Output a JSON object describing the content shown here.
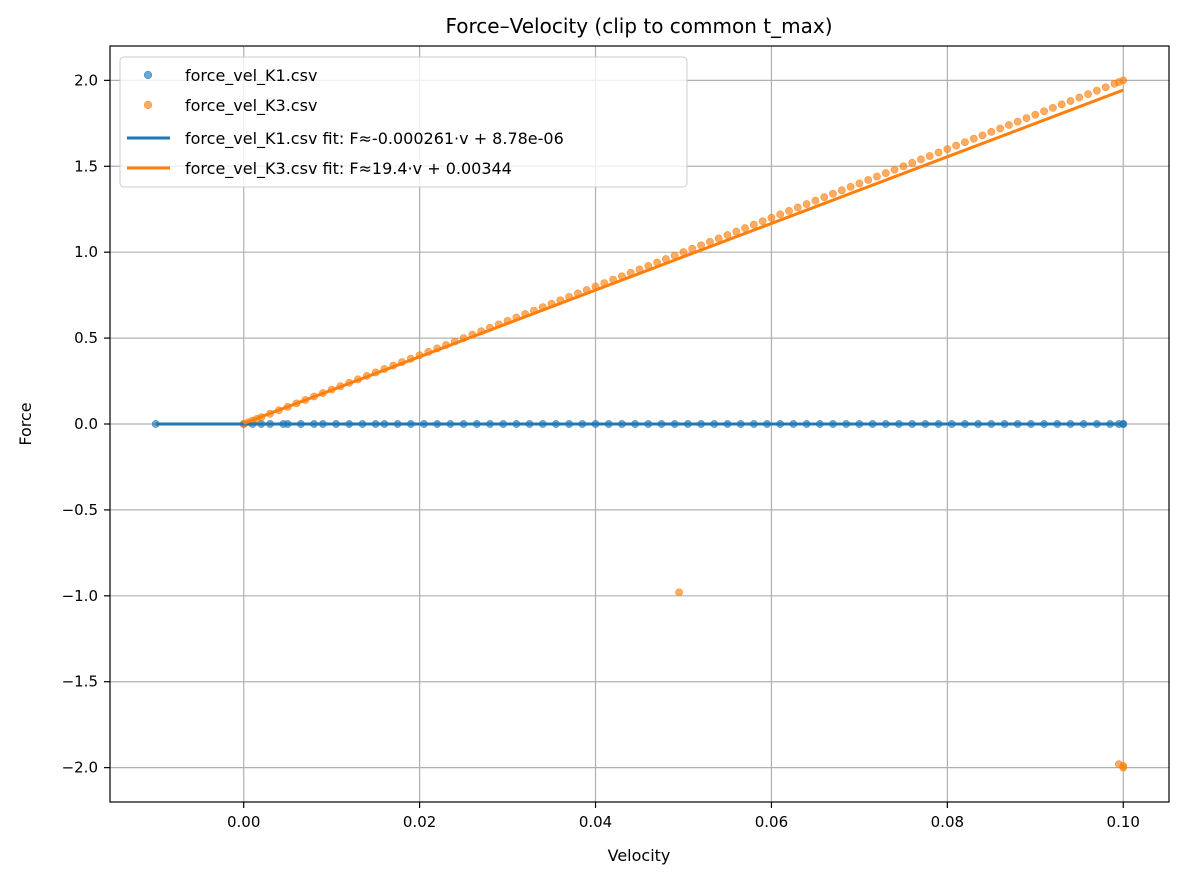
{
  "chart_data": {
    "type": "scatter",
    "title": "Force–Velocity (clip to common t_max)",
    "xlabel": "Velocity",
    "ylabel": "Force",
    "xlim": [
      -0.0152,
      0.1052
    ],
    "ylim": [
      -2.2,
      2.2
    ],
    "xticks": [
      0.0,
      0.02,
      0.04,
      0.06,
      0.08,
      0.1
    ],
    "xtick_labels": [
      "0.00",
      "0.02",
      "0.04",
      "0.06",
      "0.08",
      "0.10"
    ],
    "yticks": [
      -2.0,
      -1.5,
      -1.0,
      -0.5,
      0.0,
      0.5,
      1.0,
      1.5,
      2.0
    ],
    "ytick_labels": [
      "−2.0",
      "−1.5",
      "−1.0",
      "−0.5",
      "0.0",
      "0.5",
      "1.0",
      "1.5",
      "2.0"
    ],
    "grid": true,
    "legend_position": "top-left",
    "series": [
      {
        "name": "force_vel_K1.csv",
        "kind": "scatter",
        "color": "#1f77b4",
        "x": [
          -0.01,
          0.0,
          0.001,
          0.002,
          0.003,
          0.0045,
          0.005,
          0.0065,
          0.008,
          0.009,
          0.0105,
          0.012,
          0.0135,
          0.015,
          0.016,
          0.0175,
          0.019,
          0.0205,
          0.022,
          0.0235,
          0.025,
          0.0265,
          0.028,
          0.0295,
          0.031,
          0.0325,
          0.034,
          0.0355,
          0.037,
          0.0385,
          0.04,
          0.0415,
          0.043,
          0.0445,
          0.046,
          0.0475,
          0.049,
          0.0505,
          0.052,
          0.0535,
          0.055,
          0.0565,
          0.058,
          0.0595,
          0.061,
          0.0625,
          0.064,
          0.0655,
          0.067,
          0.0685,
          0.07,
          0.0715,
          0.073,
          0.0745,
          0.076,
          0.0775,
          0.079,
          0.0805,
          0.082,
          0.0835,
          0.085,
          0.0865,
          0.088,
          0.0895,
          0.091,
          0.0925,
          0.094,
          0.0955,
          0.097,
          0.0985,
          0.0995,
          0.1,
          0.1
        ],
        "y": [
          0.0,
          0.0,
          0.0,
          0.0,
          0.0,
          0.0,
          0.0,
          0.0,
          0.0,
          0.0,
          0.0,
          0.0,
          0.0,
          0.0,
          0.0,
          0.0,
          0.0,
          0.0,
          0.0,
          0.0,
          0.0,
          0.0,
          0.0,
          0.0,
          0.0,
          0.0,
          0.0,
          0.0,
          0.0,
          0.0,
          0.0,
          0.0,
          0.0,
          0.0,
          0.0,
          0.0,
          0.0,
          0.0,
          0.0,
          0.0,
          0.0,
          0.0,
          0.0,
          0.0,
          0.0,
          0.0,
          0.0,
          0.0,
          0.0,
          0.0,
          0.0,
          0.0,
          0.0,
          0.0,
          0.0,
          0.0,
          0.0,
          0.0,
          0.0,
          0.0,
          0.0,
          0.0,
          0.0,
          0.0,
          0.0,
          0.0,
          0.0,
          0.0,
          0.0,
          0.0,
          0.0,
          0.0,
          0.0
        ]
      },
      {
        "name": "force_vel_K3.csv",
        "kind": "scatter",
        "color": "#ff7f0e",
        "x": [
          0.0,
          0.0005,
          0.001,
          0.0015,
          0.002,
          0.003,
          0.004,
          0.005,
          0.006,
          0.007,
          0.008,
          0.009,
          0.01,
          0.011,
          0.012,
          0.013,
          0.014,
          0.015,
          0.016,
          0.017,
          0.018,
          0.019,
          0.02,
          0.021,
          0.022,
          0.023,
          0.024,
          0.025,
          0.026,
          0.027,
          0.028,
          0.029,
          0.03,
          0.031,
          0.032,
          0.033,
          0.034,
          0.035,
          0.036,
          0.037,
          0.038,
          0.039,
          0.04,
          0.041,
          0.042,
          0.043,
          0.044,
          0.045,
          0.046,
          0.047,
          0.048,
          0.049,
          0.0495,
          0.05,
          0.051,
          0.052,
          0.053,
          0.054,
          0.055,
          0.056,
          0.057,
          0.058,
          0.059,
          0.06,
          0.061,
          0.062,
          0.063,
          0.064,
          0.065,
          0.066,
          0.067,
          0.068,
          0.069,
          0.07,
          0.071,
          0.072,
          0.073,
          0.074,
          0.075,
          0.076,
          0.077,
          0.078,
          0.079,
          0.08,
          0.081,
          0.082,
          0.083,
          0.084,
          0.085,
          0.086,
          0.087,
          0.088,
          0.089,
          0.09,
          0.091,
          0.092,
          0.093,
          0.094,
          0.095,
          0.096,
          0.097,
          0.098,
          0.099,
          0.0995,
          0.1,
          0.1,
          0.0995,
          0.1
        ],
        "y": [
          0.0,
          0.01,
          0.02,
          0.03,
          0.04,
          0.06,
          0.08,
          0.1,
          0.12,
          0.14,
          0.16,
          0.18,
          0.2,
          0.22,
          0.24,
          0.26,
          0.28,
          0.3,
          0.32,
          0.34,
          0.36,
          0.38,
          0.4,
          0.42,
          0.44,
          0.46,
          0.48,
          0.5,
          0.52,
          0.54,
          0.56,
          0.58,
          0.6,
          0.62,
          0.64,
          0.66,
          0.68,
          0.7,
          0.72,
          0.74,
          0.76,
          0.78,
          0.8,
          0.82,
          0.84,
          0.86,
          0.88,
          0.9,
          0.92,
          0.94,
          0.96,
          0.98,
          -0.98,
          1.0,
          1.02,
          1.04,
          1.06,
          1.08,
          1.1,
          1.12,
          1.14,
          1.16,
          1.18,
          1.2,
          1.22,
          1.24,
          1.26,
          1.28,
          1.3,
          1.32,
          1.34,
          1.36,
          1.38,
          1.4,
          1.42,
          1.44,
          1.46,
          1.48,
          1.5,
          1.52,
          1.54,
          1.56,
          1.58,
          1.6,
          1.62,
          1.64,
          1.66,
          1.68,
          1.7,
          1.72,
          1.74,
          1.76,
          1.78,
          1.8,
          1.82,
          1.84,
          1.86,
          1.88,
          1.9,
          1.92,
          1.94,
          1.96,
          1.98,
          1.99,
          2.0,
          -2.0,
          -1.98,
          -1.99
        ]
      }
    ],
    "fits": [
      {
        "name": "force_vel_K1.csv fit: F≈-0.000261·v + 8.78e-06",
        "kind": "line",
        "color": "#1f77b4",
        "x": [
          -0.01,
          0.1
        ],
        "y": [
          0.0,
          0.0
        ]
      },
      {
        "name": "force_vel_K3.csv fit: F≈19.4·v + 0.00344",
        "kind": "line",
        "color": "#ff7f0e",
        "x": [
          0.0,
          0.1
        ],
        "y": [
          0.00344,
          1.94344
        ]
      }
    ]
  }
}
